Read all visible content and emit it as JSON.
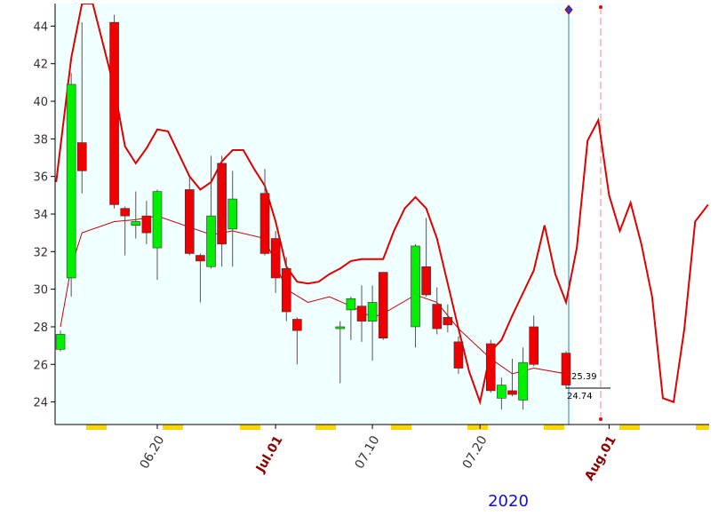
{
  "chart_data": {
    "type": "candlestick",
    "x": [
      163,
      164,
      165,
      168,
      169,
      170,
      171,
      172,
      175,
      176,
      177,
      178,
      179,
      182,
      183,
      184,
      185,
      189,
      190,
      191,
      192,
      193,
      196,
      197,
      198,
      199,
      200,
      203,
      204,
      205,
      206,
      207,
      210
    ],
    "open": [
      26.8,
      30.6,
      37.8,
      44.2,
      34.3,
      33.4,
      33.9,
      32.2,
      35.3,
      31.8,
      31.2,
      36.7,
      33.2,
      35.1,
      32.7,
      31.1,
      28.4,
      27.9,
      28.9,
      29.1,
      28.3,
      30.9,
      28.0,
      31.2,
      29.2,
      28.5,
      27.2,
      27.1,
      24.2,
      24.6,
      24.1,
      28.0,
      26.6
    ],
    "high": [
      27.8,
      41.5,
      44.2,
      44.6,
      34.4,
      35.2,
      34.7,
      35.3,
      36.0,
      31.9,
      37.1,
      37.1,
      36.3,
      36.4,
      33.1,
      31.7,
      28.5,
      28.3,
      29.6,
      30.2,
      30.2,
      30.9,
      32.4,
      33.8,
      30.1,
      29.2,
      27.5,
      27.3,
      25.3,
      26.3,
      26.9,
      28.6,
      26.7
    ],
    "low": [
      26.7,
      29.6,
      35.1,
      34.3,
      31.8,
      32.7,
      32.4,
      30.5,
      31.8,
      29.3,
      31.1,
      31.2,
      31.2,
      31.8,
      29.8,
      28.3,
      26.0,
      25.0,
      27.3,
      27.2,
      26.2,
      27.3,
      26.9,
      29.6,
      27.6,
      27.7,
      25.5,
      24.5,
      23.6,
      24.3,
      23.6,
      25.9,
      24.7
    ],
    "close": [
      27.6,
      40.9,
      36.3,
      34.5,
      33.9,
      33.6,
      33.0,
      35.2,
      31.9,
      31.5,
      33.9,
      32.4,
      34.8,
      31.9,
      30.6,
      28.8,
      27.8,
      28.0,
      29.5,
      28.3,
      29.3,
      27.4,
      32.3,
      29.7,
      27.9,
      28.1,
      25.8,
      24.6,
      24.9,
      24.4,
      26.1,
      26.0,
      24.9
    ],
    "up_color": "#00ee00",
    "down_color": "#ee0000",
    "lines": [
      {
        "color": "#e00000",
        "x": [
          162.6,
          164,
          165,
          166,
          168,
          169,
          170,
          171,
          172,
          173,
          175,
          176,
          177,
          178,
          179,
          180,
          181,
          182,
          183,
          184,
          185,
          186,
          187,
          188,
          189,
          190,
          191,
          192,
          193,
          194,
          195,
          196,
          197,
          198,
          199,
          200,
          201,
          202,
          203,
          204,
          205,
          206,
          207,
          208,
          209,
          210,
          211,
          212,
          213,
          214,
          215,
          216,
          217,
          218,
          219,
          220,
          221,
          222,
          223.2
        ],
        "values": [
          35.7,
          42.3,
          45.2,
          45.2,
          40.7,
          37.6,
          36.7,
          37.5,
          38.5,
          38.4,
          36.0,
          35.3,
          35.7,
          36.8,
          37.4,
          37.4,
          36.4,
          35.5,
          33.6,
          31.2,
          30.4,
          30.3,
          30.4,
          30.8,
          31.1,
          31.5,
          31.6,
          31.6,
          31.6,
          33.1,
          34.3,
          34.9,
          34.3,
          32.7,
          30.3,
          27.9,
          25.6,
          24.0,
          26.7,
          27.3,
          28.6,
          29.8,
          31.0,
          33.4,
          30.8,
          29.3,
          32.2,
          37.9,
          39.0,
          35.0,
          33.1,
          34.6,
          32.4,
          29.6,
          24.2,
          24.0,
          27.9,
          33.6,
          34.5
        ]
      },
      {
        "color": "#cc0000",
        "x": [
          163,
          164,
          165,
          168,
          170,
          172,
          175,
          177,
          179,
          182,
          184,
          186,
          188,
          190,
          192,
          193,
          196,
          198,
          200,
          203,
          205,
          207,
          210
        ],
        "values": [
          28.0,
          31.2,
          33.0,
          33.6,
          33.7,
          33.9,
          33.3,
          32.9,
          33.1,
          32.7,
          30.0,
          29.3,
          29.6,
          29.1,
          28.5,
          28.7,
          29.7,
          29.3,
          27.9,
          26.3,
          25.5,
          25.8,
          25.5
        ]
      }
    ],
    "annotations": [
      25.39,
      24.74
    ],
    "xlabel": "2020",
    "xlim": [
      162.5,
      223.3
    ],
    "xticks": [
      {
        "value": 172,
        "label": "06.20"
      },
      {
        "value": 183,
        "label": "Jul.01"
      },
      {
        "value": 192,
        "label": "07.10"
      },
      {
        "value": 202,
        "label": "07.20"
      },
      {
        "value": 214,
        "label": "Aug.01"
      }
    ],
    "ylim": [
      22.8,
      45.2
    ],
    "yticks": [
      24,
      26,
      28,
      30,
      32,
      34,
      36,
      38,
      40,
      42,
      44
    ]
  }
}
